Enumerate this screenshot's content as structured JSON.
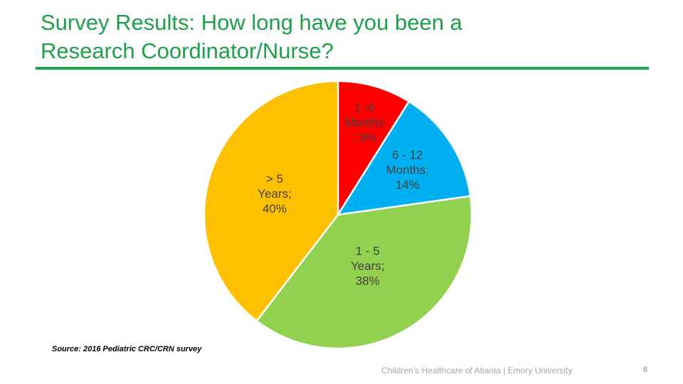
{
  "slide": {
    "title_line1": "Survey Results: How long have you been a",
    "title_line2": "Research Coordinator/Nurse?",
    "source": "Source: 2016 Pediatric CRC/CRN survey",
    "footer": "Children’s Healthcare of Atlanta | Emory University",
    "page_number": "6"
  },
  "colors": {
    "title": "#1e9f4a",
    "rule": "#1fa34a"
  },
  "chart_data": {
    "type": "pie",
    "title": "",
    "slices": [
      {
        "label": "1 -6 Months ; 9%",
        "lines": [
          "1 -6",
          "Months",
          "; 9%"
        ],
        "category": "1 -6 Months",
        "value": 9,
        "color": "#ff0000"
      },
      {
        "label": "6 - 12 Months; 14%",
        "lines": [
          "6 - 12",
          "Months;",
          "14%"
        ],
        "category": "6 - 12 Months",
        "value": 14,
        "color": "#00b0f0"
      },
      {
        "label": "1 - 5 Years; 38%",
        "lines": [
          "1 - 5",
          "Years;",
          "38%"
        ],
        "category": "1 - 5 Years",
        "value": 38,
        "color": "#92d050"
      },
      {
        "label": "> 5 Years; 40%",
        "lines": [
          "> 5",
          "Years;",
          "40%"
        ],
        "category": "> 5 Years",
        "value": 40,
        "color": "#ffc000"
      }
    ]
  }
}
